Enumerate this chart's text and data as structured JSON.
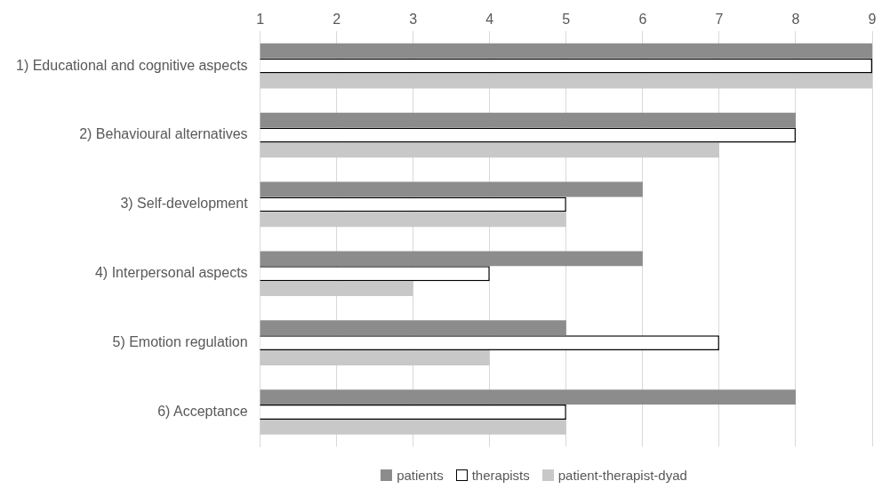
{
  "chart_data": {
    "type": "bar",
    "orientation": "horizontal",
    "categories": [
      "1) Educational and cognitive aspects",
      "2) Behavioural alternatives",
      "3) Self-development",
      "4) Interpersonal aspects",
      "5) Emotion regulation",
      "6) Acceptance"
    ],
    "series": [
      {
        "name": "patients",
        "color": "#8c8c8c",
        "values": [
          9,
          8,
          6,
          6,
          5,
          8
        ]
      },
      {
        "name": "therapists",
        "color": "#ffffff",
        "values": [
          9,
          8,
          5,
          4,
          7,
          5
        ]
      },
      {
        "name": "patient-therapist-dyad",
        "color": "#c8c8c8",
        "values": [
          9,
          7,
          5,
          3,
          4,
          5
        ]
      }
    ],
    "xlim": [
      1,
      9
    ],
    "xticks": [
      1,
      2,
      3,
      4,
      5,
      6,
      7,
      8,
      9
    ],
    "grid": "x",
    "legend": "bottom"
  }
}
